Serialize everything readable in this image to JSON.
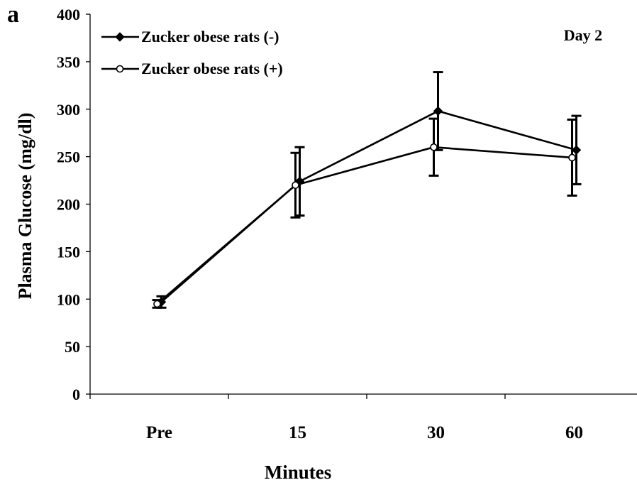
{
  "chart_data": {
    "type": "line",
    "panel_label": "a",
    "annotation": "Day 2",
    "categories": [
      "Pre",
      "15",
      "30",
      "60"
    ],
    "xlabel": "Minutes",
    "ylabel": "Plasma Glucose (mg/dl)",
    "ylim": [
      0,
      400
    ],
    "yticks": [
      0,
      50,
      100,
      150,
      200,
      250,
      300,
      350,
      400
    ],
    "grid": false,
    "legend_position": "top-left",
    "series": [
      {
        "name": "Zucker obese rats (-)",
        "marker": "filled-diamond",
        "values": [
          97,
          224,
          298,
          257
        ],
        "error": [
          6,
          36,
          41,
          36
        ]
      },
      {
        "name": "Zucker obese rats (+)",
        "marker": "open-circle",
        "values": [
          95,
          220,
          260,
          249
        ],
        "error": [
          4,
          34,
          30,
          40
        ]
      }
    ]
  }
}
